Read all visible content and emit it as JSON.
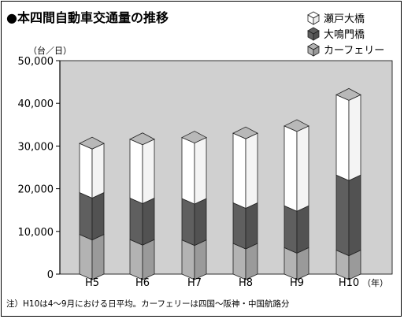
{
  "chart_data": {
    "type": "bar",
    "title": "●本四間自動車交通量の推移",
    "ylabel": "（台／日）",
    "xunit": "（年）",
    "categories": [
      "H5",
      "H6",
      "H7",
      "H8",
      "H9",
      "H10"
    ],
    "ylim": [
      0,
      50000
    ],
    "yticks": [
      0,
      10000,
      20000,
      30000,
      40000,
      50000
    ],
    "ytick_labels": [
      "0",
      "10,000",
      "20,000",
      "30,000",
      "40,000",
      "50,000"
    ],
    "series": [
      {
        "name": "カーフェリー",
        "values": [
          9300,
          8100,
          8000,
          7200,
          6200,
          5600
        ],
        "color": "#b3b3b3"
      },
      {
        "name": "大鳴門橋",
        "values": [
          9800,
          9700,
          9700,
          9500,
          9800,
          17600
        ],
        "color": "#5f5f5f"
      },
      {
        "name": "瀬戸大橋",
        "values": [
          11500,
          13800,
          14300,
          16300,
          18700,
          18800
        ],
        "color": "#ffffff"
      }
    ],
    "legend_order": [
      "瀬戸大橋",
      "大鳴門橋",
      "カーフェリー"
    ],
    "legend_position": "top-right",
    "grid": false,
    "plot_background": "#d0d0d0"
  },
  "note": "注）H10は4～9月における日平均。カーフェリーは四国～阪神・中国航路分"
}
